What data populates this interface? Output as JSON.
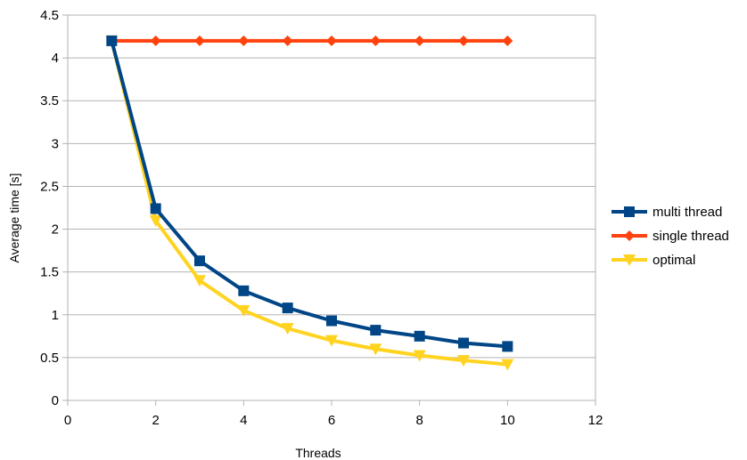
{
  "chart_data": {
    "type": "line",
    "title": "",
    "xlabel": "Threads",
    "ylabel": "Average time [s]",
    "xlim": [
      0,
      12
    ],
    "ylim": [
      0,
      4.5
    ],
    "xticks": [
      0,
      2,
      4,
      6,
      8,
      10,
      12
    ],
    "yticks": [
      0,
      0.5,
      1,
      1.5,
      2,
      2.5,
      3,
      3.5,
      4,
      4.5
    ],
    "grid": "horizontal",
    "legend_position": "right",
    "x": [
      1,
      2,
      3,
      4,
      5,
      6,
      7,
      8,
      9,
      10
    ],
    "series": [
      {
        "name": "optimal",
        "color": "#ffd320",
        "marker": "triangle-down",
        "values": [
          4.2,
          2.1,
          1.4,
          1.05,
          0.84,
          0.7,
          0.6,
          0.525,
          0.467,
          0.42
        ]
      },
      {
        "name": "single thread",
        "color": "#ff420e",
        "marker": "diamond",
        "values": [
          4.2,
          4.2,
          4.2,
          4.2,
          4.2,
          4.2,
          4.2,
          4.2,
          4.2,
          4.2
        ]
      },
      {
        "name": "multi thread",
        "color": "#004586",
        "marker": "square",
        "values": [
          4.2,
          2.24,
          1.63,
          1.28,
          1.08,
          0.93,
          0.82,
          0.75,
          0.67,
          0.63
        ]
      }
    ],
    "legend_order": [
      "multi thread",
      "single thread",
      "optimal"
    ]
  }
}
